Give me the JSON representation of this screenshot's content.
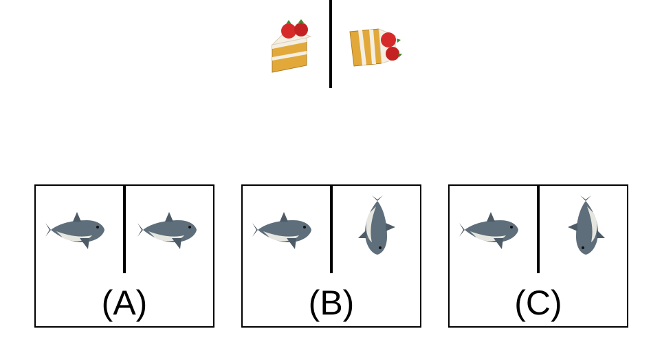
{
  "prompt": {
    "left_object": "strawberry-cake-slice",
    "right_object": "strawberry-cake-slice-rotated"
  },
  "options": [
    {
      "label": "(A)",
      "left_object": "shark",
      "right_object": "shark"
    },
    {
      "label": "(B)",
      "left_object": "shark",
      "right_object": "shark-rotated"
    },
    {
      "label": "(C)",
      "left_object": "shark",
      "right_object": "shark-rotated"
    }
  ],
  "colors": {
    "cake_sponge": "#E2A93A",
    "cake_cream": "#F4EFE2",
    "strawberry": "#D62A2A",
    "shark_body": "#5E6E7B",
    "shark_belly": "#E6E6E0"
  }
}
